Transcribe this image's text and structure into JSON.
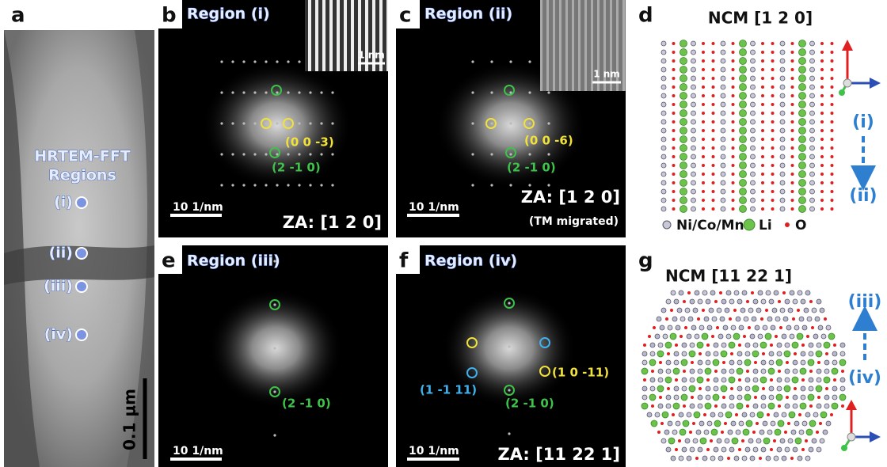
{
  "panels": {
    "a": {
      "label": "a",
      "title": [
        "HRTEM-FFT",
        "Regions"
      ],
      "points": [
        "(i)",
        "(ii)",
        "(iii)",
        "(iv)"
      ],
      "scale_bar": "0.1 μm"
    },
    "b": {
      "label": "b",
      "region": "Region (i)",
      "inset_scale": "1 nm",
      "scale_bar": "10 1/nm",
      "spots": [
        "(0 0 -3)",
        "(2 -1 0)"
      ],
      "zone_axis": "ZA: [1 2 0]"
    },
    "c": {
      "label": "c",
      "region": "Region (ii)",
      "inset_scale": "1 nm",
      "scale_bar": "10 1/nm",
      "spots": [
        "(0 0 -6)",
        "(2 -1 0)"
      ],
      "zone_axis": "ZA: [1 2 0]",
      "note": "(TM migrated)"
    },
    "d": {
      "label": "d",
      "title": "NCM [1 2 0]",
      "arrow_from": "(i)",
      "arrow_to": "(ii)",
      "legend": [
        "Ni/Co/Mn",
        "Li",
        "O"
      ]
    },
    "e": {
      "label": "e",
      "region": "Region (iii)",
      "scale_bar": "10 1/nm",
      "spots": [
        "(2 -1 0)"
      ]
    },
    "f": {
      "label": "f",
      "region": "Region (iv)",
      "scale_bar": "10 1/nm",
      "spots": [
        "(1 -1 11)",
        "(2 -1 0)",
        "(1 0 -11)"
      ],
      "zone_axis": "ZA: [11 22 1]"
    },
    "g": {
      "label": "g",
      "title": "NCM [11 22 1]",
      "arrow_from": "(iv)",
      "arrow_to": "(iii)"
    }
  }
}
